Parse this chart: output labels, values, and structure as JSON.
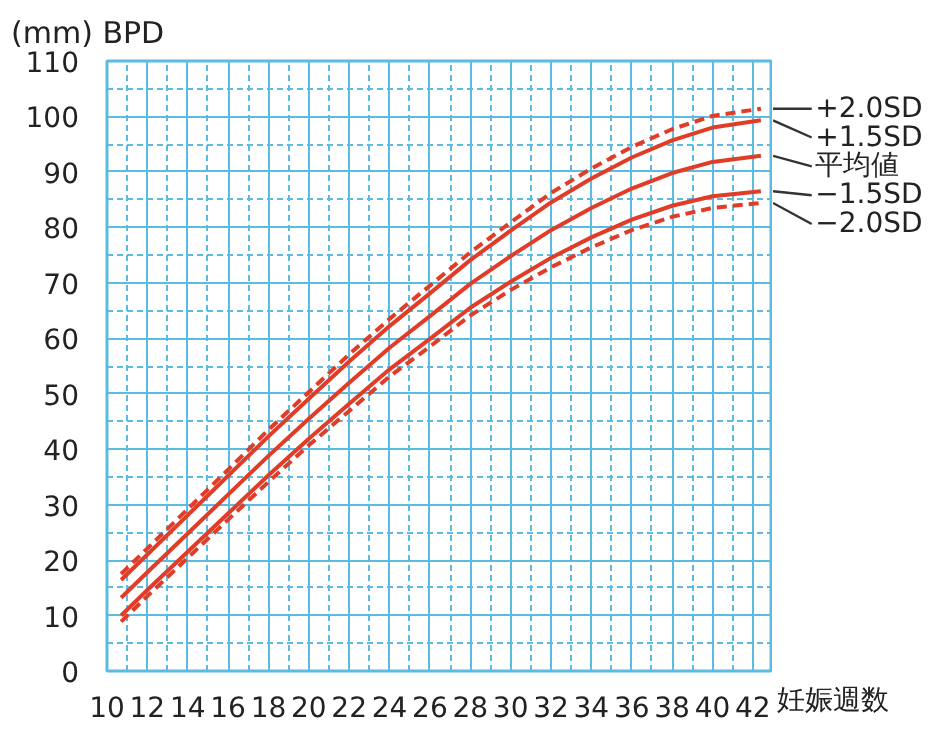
{
  "chart_data": {
    "type": "line",
    "xlabel": "妊娠週数",
    "ylabel": "(mm) BPD",
    "xlim": [
      10,
      43
    ],
    "ylim": [
      0,
      110
    ],
    "xticks": [
      10,
      {
        "value": 11,
        "label": null
      },
      12,
      {
        "value": 13,
        "label": null
      },
      14,
      {
        "value": 15,
        "label": null
      },
      16,
      {
        "value": 17,
        "label": null
      },
      18,
      {
        "value": 19,
        "label": null
      },
      20,
      {
        "value": 21,
        "label": null
      },
      22,
      {
        "value": 23,
        "label": null
      },
      24,
      {
        "value": 25,
        "label": null
      },
      26,
      {
        "value": 27,
        "label": null
      },
      28,
      {
        "value": 29,
        "label": null
      },
      30,
      {
        "value": 31,
        "label": null
      },
      32,
      {
        "value": 33,
        "label": null
      },
      34,
      {
        "value": 35,
        "label": null
      },
      36,
      {
        "value": 37,
        "label": null
      },
      38,
      {
        "value": 39,
        "label": null
      },
      40,
      {
        "value": 41,
        "label": null
      },
      42
    ],
    "yticks": [
      0,
      {
        "value": 5,
        "label": null
      },
      10,
      {
        "value": 15,
        "label": null
      },
      20,
      {
        "value": 25,
        "label": null
      },
      30,
      {
        "value": 35,
        "label": null
      },
      40,
      {
        "value": 45,
        "label": null
      },
      50,
      {
        "value": 55,
        "label": null
      },
      60,
      {
        "value": 65,
        "label": null
      },
      70,
      {
        "value": 75,
        "label": null
      },
      80,
      {
        "value": 85,
        "label": null
      },
      90,
      {
        "value": 95,
        "label": null
      },
      100,
      {
        "value": 105,
        "label": null
      },
      110
    ],
    "grid": true,
    "legend": false,
    "marker": "none",
    "x": [
      10.7,
      12,
      14,
      16,
      18,
      20,
      22,
      24,
      26,
      28,
      30,
      32,
      34,
      36,
      38,
      40,
      42.4
    ],
    "series": [
      {
        "name": "+2.0SD",
        "color": "#e03c28",
        "line_style": "dashed",
        "values": [
          17.5,
          22.1,
          29.2,
          36.3,
          43.5,
          50.3,
          57.1,
          63.5,
          69.5,
          75.5,
          80.9,
          86.2,
          90.6,
          94.5,
          97.7,
          100.1,
          101.4
        ]
      },
      {
        "name": "+1.5SD",
        "color": "#e03c28",
        "line_style": "solid",
        "values": [
          16.4,
          21.0,
          28.1,
          35.2,
          42.3,
          49.1,
          55.8,
          62.2,
          68.1,
          74.1,
          79.4,
          84.5,
          88.8,
          92.6,
          95.7,
          98.0,
          99.3
        ]
      },
      {
        "name": "平均値",
        "color": "#e03c28",
        "line_style": "solid",
        "values": [
          13.2,
          17.8,
          24.8,
          31.8,
          38.8,
          45.5,
          52,
          58.3,
          64,
          69.8,
          74.8,
          79.5,
          83.5,
          87,
          89.8,
          91.8,
          92.9
        ]
      },
      {
        "name": "−1.5SD",
        "color": "#e03c28",
        "line_style": "solid",
        "values": [
          10.0,
          14.6,
          21.5,
          28.4,
          35.3,
          41.9,
          48.2,
          54.4,
          59.9,
          65.5,
          70.2,
          74.5,
          78.2,
          81.4,
          83.9,
          85.6,
          86.5
        ]
      },
      {
        "name": "−2.0SD",
        "color": "#e03c28",
        "line_style": "dashed",
        "values": [
          8.9,
          13.5,
          20.4,
          27.3,
          34.1,
          40.7,
          46.9,
          53.1,
          58.5,
          64.1,
          68.7,
          72.8,
          76.4,
          79.5,
          81.9,
          83.5,
          84.4
        ]
      }
    ]
  }
}
